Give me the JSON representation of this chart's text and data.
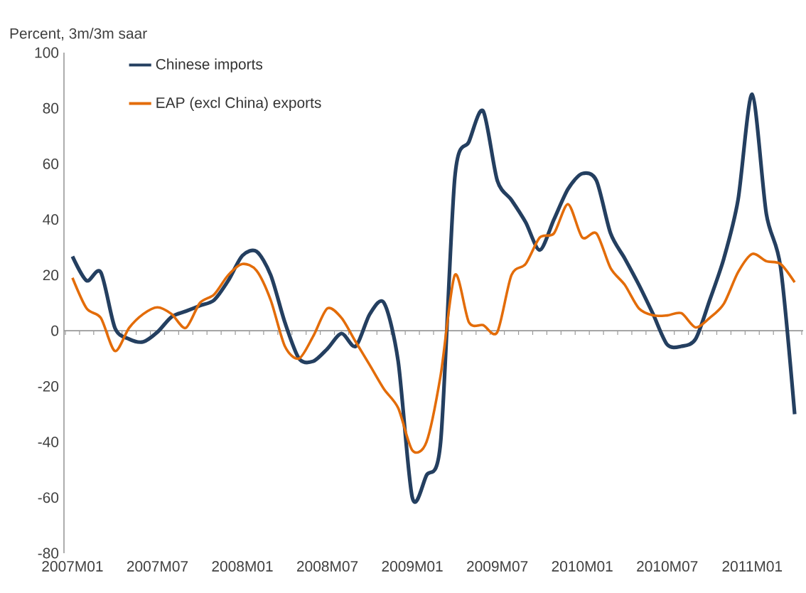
{
  "chart_data": {
    "type": "line",
    "ylabel": "Percent, 3m/3m saar",
    "categories": [
      "2007M01",
      null,
      null,
      null,
      null,
      null,
      "2007M07",
      null,
      null,
      null,
      null,
      null,
      "2008M01",
      null,
      null,
      null,
      null,
      null,
      "2008M07",
      null,
      null,
      null,
      null,
      null,
      "2009M01",
      null,
      null,
      null,
      null,
      null,
      "2009M07",
      null,
      null,
      null,
      null,
      null,
      "2010M01",
      null,
      null,
      null,
      null,
      null,
      "2010M07",
      null,
      null,
      null,
      null,
      null,
      "2011M01",
      null,
      null,
      null
    ],
    "series": [
      {
        "name": "Chinese imports",
        "color": "#243f60",
        "values": [
          26.7,
          18,
          21,
          1,
          -3,
          -4,
          -0.5,
          5,
          7,
          9,
          11,
          18,
          27,
          28.5,
          20,
          3,
          -10,
          -11,
          -6.5,
          -1,
          -5.6,
          6,
          10,
          -11,
          -60,
          -52,
          -40,
          55,
          68,
          79,
          54,
          47,
          39,
          29,
          40,
          51,
          56.5,
          54,
          35,
          26,
          16.5,
          6,
          -5,
          -5.6,
          -3,
          11,
          26,
          47,
          85,
          42,
          23,
          -30
        ]
      },
      {
        "name": "EAP (excl China) exports",
        "color": "#e36c09",
        "values": [
          19,
          8,
          4.6,
          -7.3,
          1,
          6,
          8.4,
          6,
          1,
          10,
          13,
          20,
          24,
          21.6,
          11,
          -5.6,
          -10,
          -2,
          8,
          4.6,
          -4,
          -12.4,
          -21,
          -27.8,
          -43,
          -40,
          -16,
          20,
          3,
          2,
          -0.5,
          20,
          24,
          33.5,
          35,
          45.5,
          33.5,
          35,
          22.5,
          16.5,
          8,
          5.5,
          5.5,
          6.3,
          1.2,
          4.6,
          9.7,
          21,
          27.6,
          25,
          24,
          17.4
        ]
      }
    ],
    "ylim": [
      -80,
      100
    ],
    "yticks": [
      -80,
      -60,
      -40,
      -20,
      0,
      20,
      40,
      60,
      80,
      100
    ],
    "legend": "top left",
    "marker": "none",
    "line_style": "solid"
  }
}
